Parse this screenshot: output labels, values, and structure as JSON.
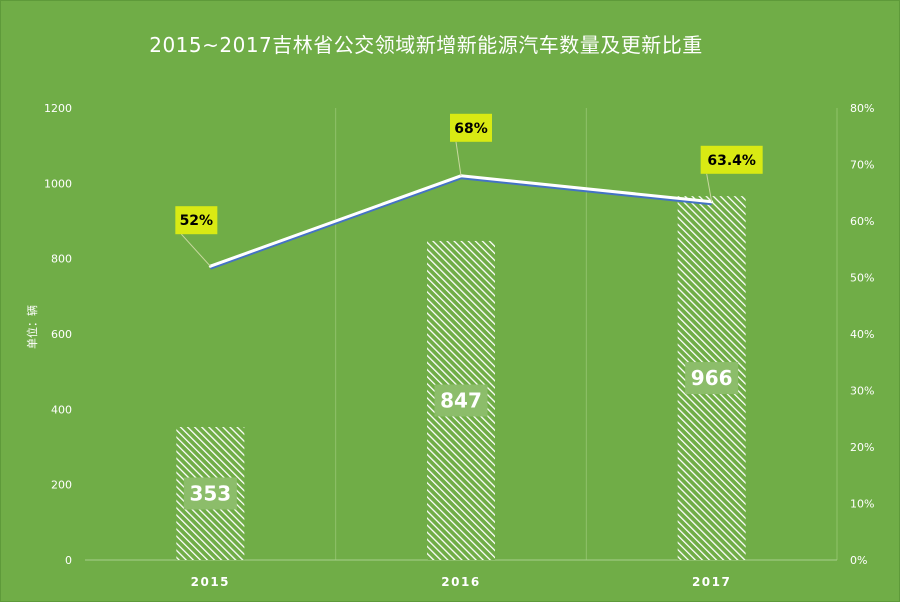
{
  "chart_data": {
    "type": "bar",
    "title": "2015~2017吉林省公交领域新增新能源汽车数量及更新比重",
    "categories": [
      "2015",
      "2016",
      "2017"
    ],
    "ylabel": "单位：辆",
    "ylim": [
      0,
      1200
    ],
    "yticks": [
      "0",
      "200",
      "400",
      "600",
      "800",
      "1000",
      "1200"
    ],
    "y2lim": [
      0,
      0.8
    ],
    "y2ticks": [
      "0%",
      "10%",
      "20%",
      "30%",
      "40%",
      "50%",
      "60%",
      "70%",
      "80%"
    ],
    "grid": "vertical",
    "series": [
      {
        "kind": "bar",
        "values": [
          353,
          847,
          966
        ],
        "labels": [
          "353",
          "847",
          "966"
        ],
        "pattern": "white diagonal hatch"
      },
      {
        "kind": "line",
        "axis": "secondary",
        "values": [
          0.52,
          0.68,
          0.634
        ],
        "labels": [
          "52%",
          "68%",
          "63.4%"
        ]
      }
    ]
  },
  "colors": {
    "background": "#70ad47",
    "bar_hatch": "#ffffff",
    "line": "#ffffff",
    "line_shadow": "#4472c4",
    "pct_label_bg": "#d9ea13",
    "bar_label_bg": "#8cbd6a"
  }
}
